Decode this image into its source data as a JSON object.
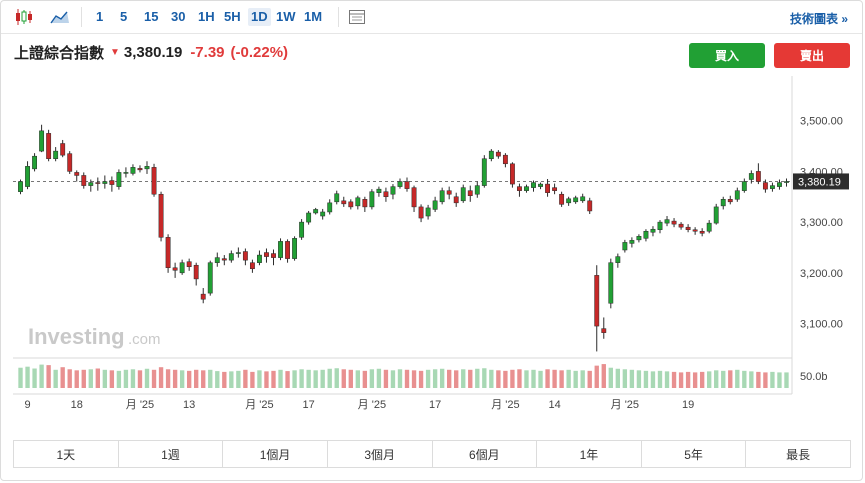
{
  "toolbar": {
    "chart_type_icons": [
      "candlestick-icon",
      "area-chart-icon"
    ],
    "timeframes": [
      "1",
      "5",
      "15",
      "30",
      "1H",
      "5H",
      "1D",
      "1W",
      "1M"
    ],
    "active_timeframe": "1D",
    "table_icon": "table-icon",
    "tech_chart_label": "技術圖表 »"
  },
  "instrument": {
    "name": "上證綜合指數",
    "price": "3,380.19",
    "change": "-7.39",
    "change_pct": "(-0.22%)",
    "direction_icon": "down-arrow-icon"
  },
  "actions": {
    "buy_label": "買入",
    "sell_label": "賣出"
  },
  "colors": {
    "up": "#21a034",
    "down": "#c62828",
    "buy": "#21a034",
    "sell": "#e53935",
    "link": "#1a5fa8",
    "vol_up": "#a8d8b4",
    "vol_down": "#e89090"
  },
  "watermark": {
    "brand": "Investing",
    "suffix": ".com"
  },
  "range_buttons": [
    "1天",
    "1週",
    "1個月",
    "3個月",
    "6個月",
    "1年",
    "5年",
    "最長"
  ],
  "chart_data": {
    "type": "candlestick",
    "y_ticks": [
      "3,500.00",
      "3,400.00",
      "3,300.00",
      "3,200.00",
      "3,100.00"
    ],
    "y_tick_values": [
      3500,
      3400,
      3300,
      3200,
      3100
    ],
    "ylim": [
      3036,
      3596
    ],
    "last_price": 3380.19,
    "last_price_label": "3,380.19",
    "volume_label": "50.0b",
    "x_ticks": [
      "9",
      "18",
      "月 '25",
      "13",
      "月 '25",
      "17",
      "月 '25",
      "17",
      "月 '25",
      "14",
      "月 '25",
      "19"
    ],
    "x_tick_index": [
      1,
      8,
      17,
      24,
      34,
      41,
      50,
      59,
      69,
      76,
      86,
      95
    ],
    "candles": [
      [
        3360,
        3380,
        3355,
        3384
      ],
      [
        3370,
        3410,
        3365,
        3420
      ],
      [
        3405,
        3430,
        3400,
        3436
      ],
      [
        3440,
        3480,
        3438,
        3492
      ],
      [
        3475,
        3425,
        3420,
        3482
      ],
      [
        3425,
        3440,
        3420,
        3448
      ],
      [
        3455,
        3432,
        3428,
        3462
      ],
      [
        3435,
        3400,
        3395,
        3440
      ],
      [
        3398,
        3392,
        3380,
        3402
      ],
      [
        3392,
        3372,
        3366,
        3398
      ],
      [
        3372,
        3378,
        3360,
        3384
      ],
      [
        3378,
        3376,
        3362,
        3388
      ],
      [
        3376,
        3380,
        3366,
        3392
      ],
      [
        3382,
        3374,
        3360,
        3390
      ],
      [
        3370,
        3398,
        3364,
        3404
      ],
      [
        3398,
        3398,
        3388,
        3408
      ],
      [
        3396,
        3408,
        3392,
        3414
      ],
      [
        3406,
        3403,
        3398,
        3412
      ],
      [
        3405,
        3410,
        3395,
        3420
      ],
      [
        3408,
        3355,
        3350,
        3415
      ],
      [
        3355,
        3270,
        3262,
        3360
      ],
      [
        3270,
        3210,
        3200,
        3276
      ],
      [
        3210,
        3205,
        3190,
        3220
      ],
      [
        3200,
        3220,
        3196,
        3226
      ],
      [
        3222,
        3212,
        3204,
        3228
      ],
      [
        3215,
        3188,
        3175,
        3220
      ],
      [
        3158,
        3148,
        3140,
        3170
      ],
      [
        3160,
        3220,
        3155,
        3224
      ],
      [
        3220,
        3230,
        3212,
        3240
      ],
      [
        3228,
        3225,
        3215,
        3235
      ],
      [
        3225,
        3238,
        3220,
        3244
      ],
      [
        3238,
        3240,
        3230,
        3250
      ],
      [
        3242,
        3225,
        3215,
        3248
      ],
      [
        3220,
        3208,
        3200,
        3226
      ],
      [
        3220,
        3235,
        3215,
        3244
      ],
      [
        3240,
        3232,
        3220,
        3248
      ],
      [
        3238,
        3230,
        3215,
        3246
      ],
      [
        3230,
        3262,
        3225,
        3268
      ],
      [
        3262,
        3228,
        3220,
        3266
      ],
      [
        3228,
        3268,
        3224,
        3272
      ],
      [
        3270,
        3300,
        3265,
        3306
      ],
      [
        3300,
        3318,
        3295,
        3322
      ],
      [
        3318,
        3325,
        3315,
        3328
      ],
      [
        3312,
        3320,
        3305,
        3326
      ],
      [
        3320,
        3338,
        3315,
        3345
      ],
      [
        3340,
        3356,
        3335,
        3362
      ],
      [
        3342,
        3336,
        3330,
        3350
      ],
      [
        3340,
        3330,
        3325,
        3345
      ],
      [
        3332,
        3348,
        3325,
        3352
      ],
      [
        3345,
        3330,
        3320,
        3350
      ],
      [
        3330,
        3360,
        3325,
        3365
      ],
      [
        3358,
        3365,
        3350,
        3370
      ],
      [
        3360,
        3350,
        3340,
        3368
      ],
      [
        3355,
        3370,
        3345,
        3375
      ],
      [
        3370,
        3380,
        3366,
        3386
      ],
      [
        3380,
        3366,
        3360,
        3388
      ],
      [
        3368,
        3330,
        3320,
        3372
      ],
      [
        3330,
        3308,
        3300,
        3335
      ],
      [
        3312,
        3328,
        3305,
        3334
      ],
      [
        3325,
        3342,
        3320,
        3350
      ],
      [
        3340,
        3362,
        3335,
        3368
      ],
      [
        3362,
        3355,
        3345,
        3370
      ],
      [
        3350,
        3338,
        3330,
        3358
      ],
      [
        3342,
        3368,
        3338,
        3374
      ],
      [
        3362,
        3352,
        3340,
        3372
      ],
      [
        3355,
        3372,
        3348,
        3380
      ],
      [
        3372,
        3425,
        3368,
        3432
      ],
      [
        3425,
        3440,
        3420,
        3444
      ],
      [
        3438,
        3430,
        3425,
        3442
      ],
      [
        3432,
        3415,
        3408,
        3436
      ],
      [
        3415,
        3375,
        3368,
        3418
      ],
      [
        3370,
        3362,
        3350,
        3376
      ],
      [
        3362,
        3370,
        3358,
        3374
      ],
      [
        3368,
        3378,
        3360,
        3382
      ],
      [
        3370,
        3375,
        3365,
        3378
      ],
      [
        3375,
        3358,
        3350,
        3385
      ],
      [
        3368,
        3362,
        3355,
        3376
      ],
      [
        3355,
        3335,
        3330,
        3360
      ],
      [
        3338,
        3346,
        3332,
        3350
      ],
      [
        3340,
        3348,
        3336,
        3352
      ],
      [
        3342,
        3350,
        3338,
        3356
      ],
      [
        3342,
        3322,
        3316,
        3348
      ],
      [
        3195,
        3095,
        3045,
        3215
      ],
      [
        3090,
        3082,
        3070,
        3112
      ],
      [
        3140,
        3220,
        3130,
        3228
      ],
      [
        3220,
        3232,
        3210,
        3238
      ],
      [
        3245,
        3260,
        3240,
        3265
      ],
      [
        3258,
        3264,
        3250,
        3270
      ],
      [
        3265,
        3272,
        3260,
        3276
      ],
      [
        3268,
        3282,
        3262,
        3286
      ],
      [
        3280,
        3286,
        3272,
        3292
      ],
      [
        3285,
        3300,
        3278,
        3304
      ],
      [
        3298,
        3305,
        3292,
        3312
      ],
      [
        3302,
        3296,
        3290,
        3308
      ],
      [
        3296,
        3290,
        3285,
        3300
      ],
      [
        3290,
        3285,
        3280,
        3296
      ],
      [
        3285,
        3282,
        3275,
        3290
      ],
      [
        3282,
        3278,
        3272,
        3288
      ],
      [
        3282,
        3298,
        3278,
        3304
      ],
      [
        3298,
        3330,
        3295,
        3336
      ],
      [
        3332,
        3345,
        3325,
        3350
      ],
      [
        3345,
        3340,
        3335,
        3352
      ],
      [
        3345,
        3362,
        3340,
        3368
      ],
      [
        3362,
        3380,
        3358,
        3386
      ],
      [
        3384,
        3396,
        3376,
        3402
      ],
      [
        3400,
        3380,
        3375,
        3416
      ],
      [
        3378,
        3365,
        3358,
        3384
      ],
      [
        3366,
        3372,
        3360,
        3378
      ],
      [
        3370,
        3378,
        3364,
        3384
      ],
      [
        3378,
        3380,
        3370,
        3386
      ]
    ],
    "volumes": [
      0.78,
      0.82,
      0.75,
      0.9,
      0.88,
      0.7,
      0.8,
      0.72,
      0.68,
      0.7,
      0.72,
      0.75,
      0.7,
      0.68,
      0.66,
      0.7,
      0.72,
      0.68,
      0.74,
      0.7,
      0.8,
      0.72,
      0.7,
      0.68,
      0.66,
      0.7,
      0.68,
      0.7,
      0.65,
      0.62,
      0.64,
      0.66,
      0.7,
      0.62,
      0.68,
      0.64,
      0.66,
      0.7,
      0.65,
      0.68,
      0.72,
      0.7,
      0.68,
      0.7,
      0.74,
      0.76,
      0.72,
      0.7,
      0.68,
      0.66,
      0.72,
      0.74,
      0.7,
      0.68,
      0.72,
      0.7,
      0.68,
      0.66,
      0.7,
      0.72,
      0.74,
      0.7,
      0.68,
      0.72,
      0.7,
      0.74,
      0.76,
      0.7,
      0.68,
      0.66,
      0.7,
      0.72,
      0.68,
      0.7,
      0.66,
      0.72,
      0.7,
      0.68,
      0.7,
      0.66,
      0.68,
      0.66,
      0.86,
      0.92,
      0.78,
      0.74,
      0.72,
      0.7,
      0.68,
      0.66,
      0.64,
      0.66,
      0.64,
      0.62,
      0.6,
      0.62,
      0.6,
      0.62,
      0.64,
      0.68,
      0.66,
      0.68,
      0.7,
      0.66,
      0.64,
      0.62,
      0.6,
      0.62,
      0.6,
      0.6
    ]
  }
}
